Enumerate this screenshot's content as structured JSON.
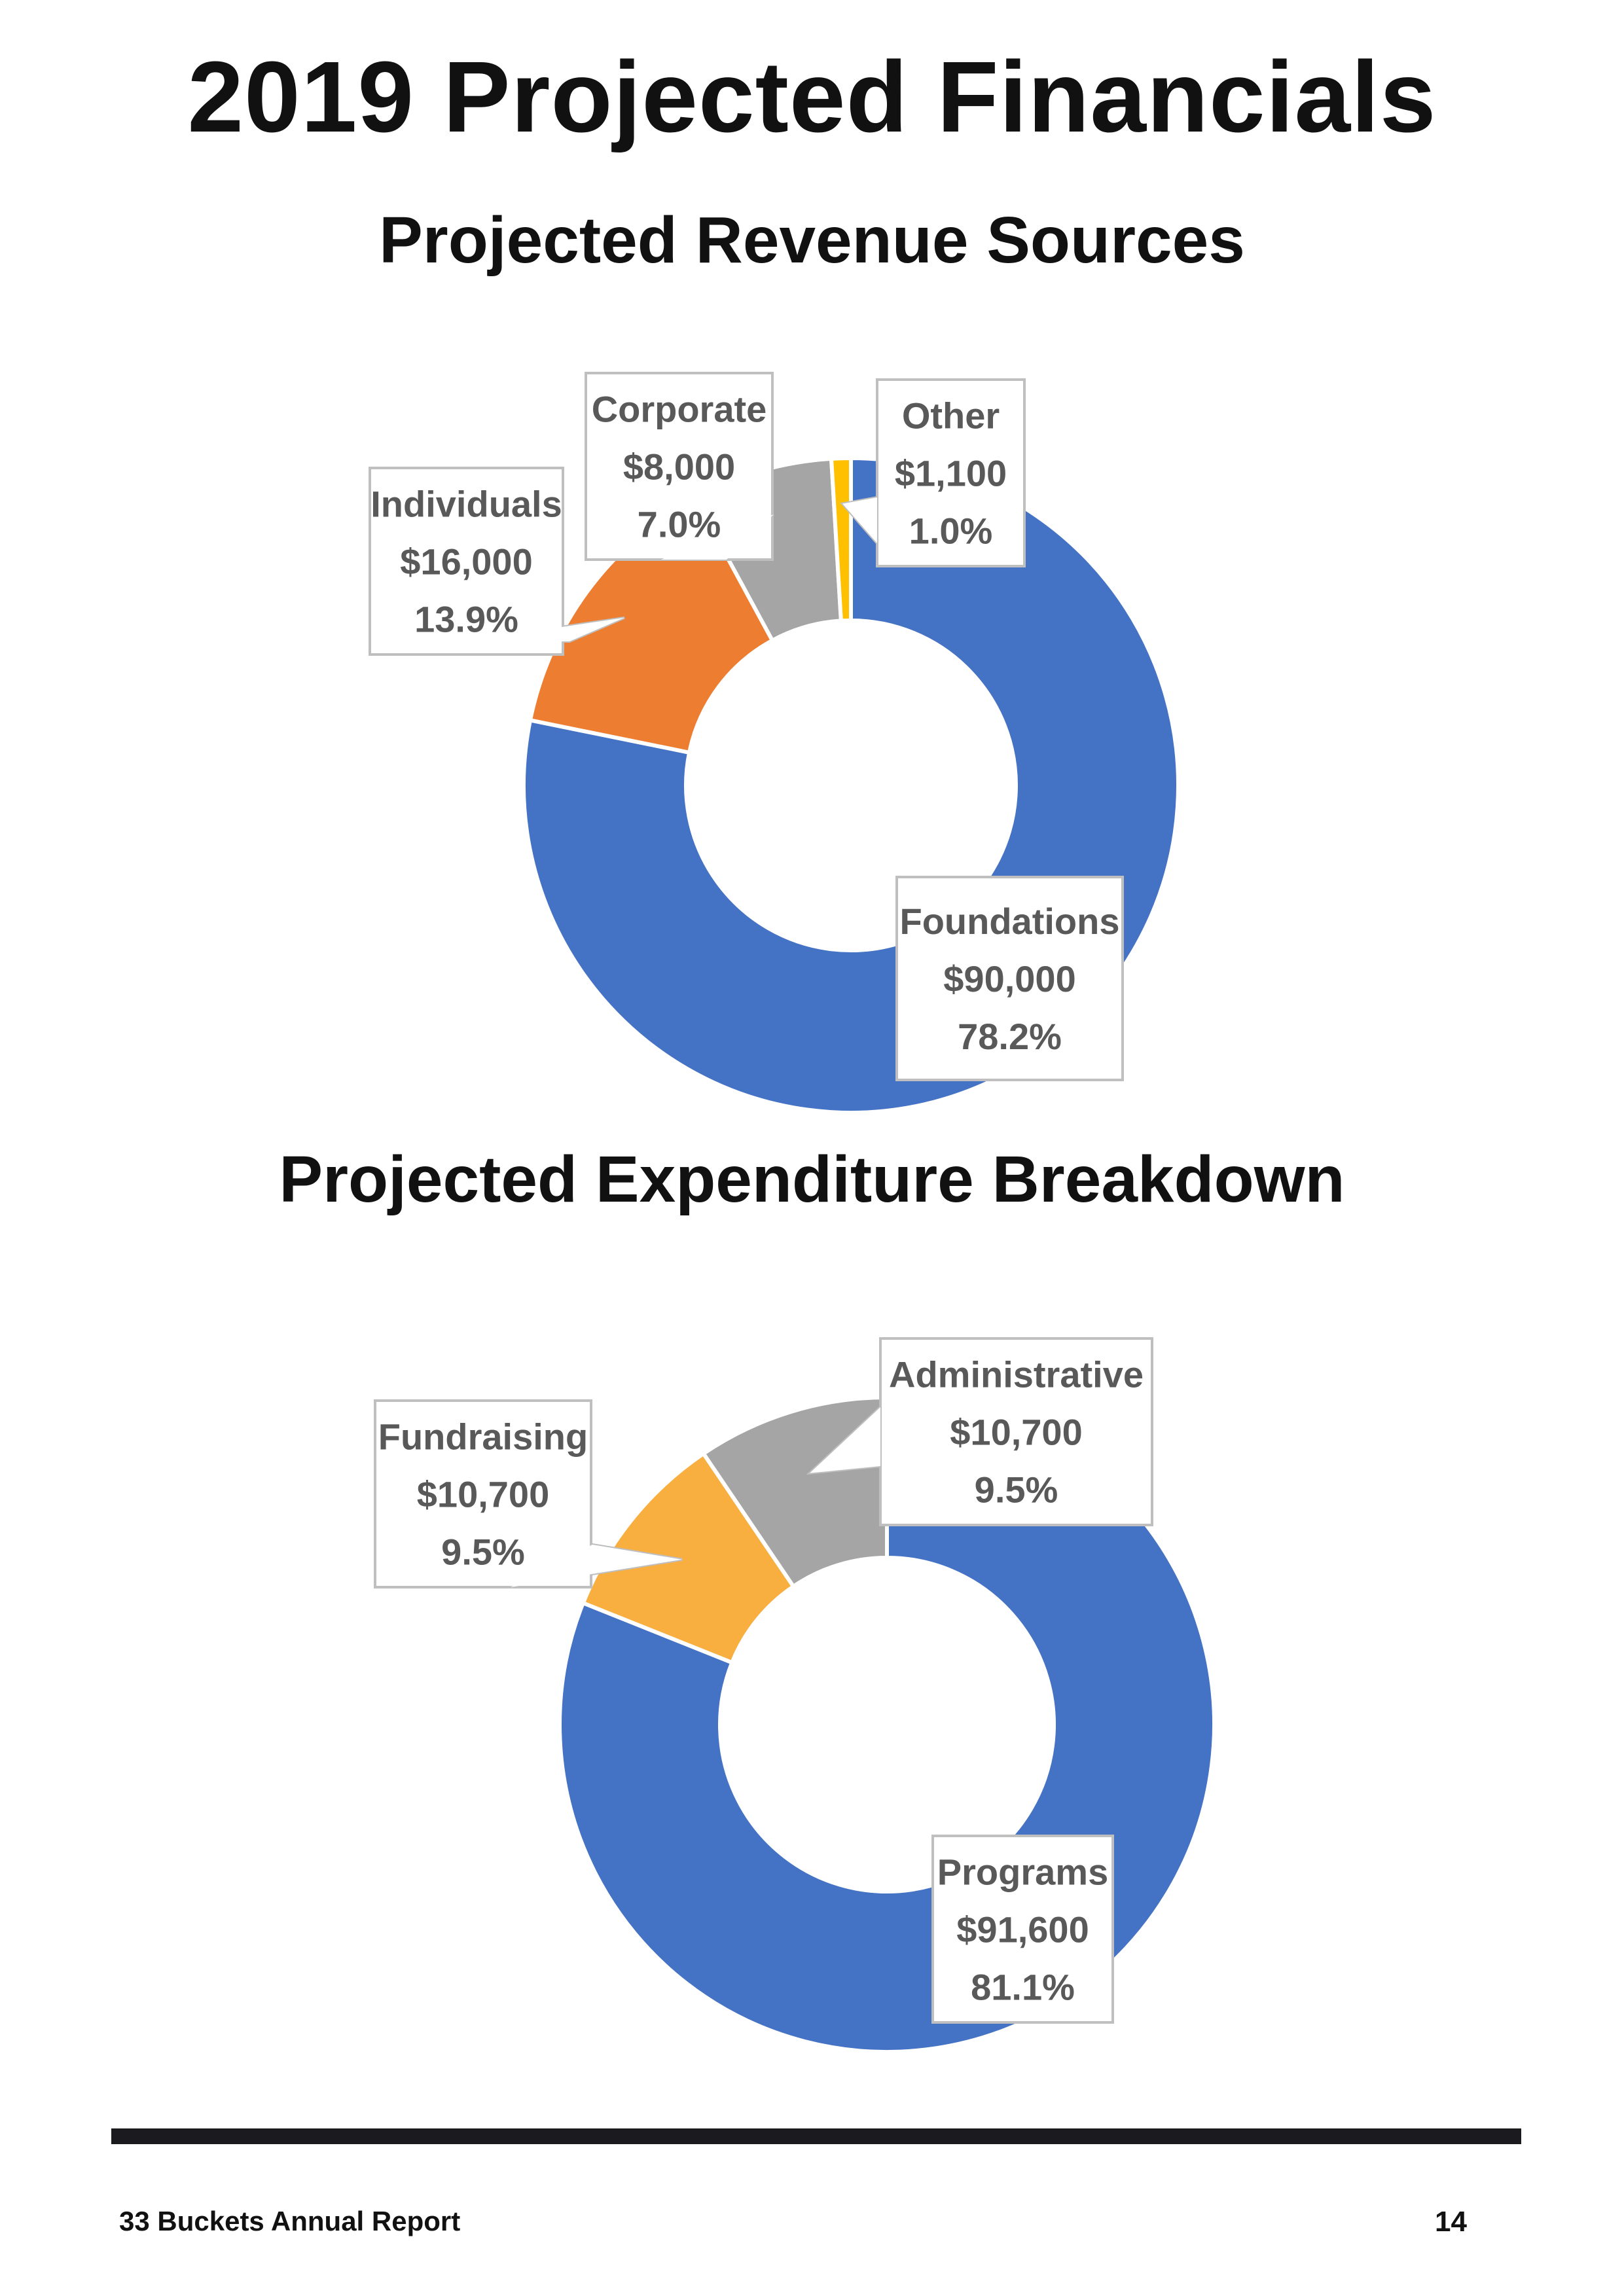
{
  "page": {
    "title": "2019 Projected Financials",
    "footer_left": "33 Buckets Annual Report",
    "page_number": "14"
  },
  "chart_data": [
    {
      "type": "pie",
      "style": "donut",
      "title": "Projected Revenue Sources",
      "categories": [
        "Foundations",
        "Individuals",
        "Corporate",
        "Other"
      ],
      "values": [
        90000,
        16000,
        8000,
        1100
      ],
      "value_labels": [
        "$90,000",
        "$16,000",
        "$8,000",
        "$1,100"
      ],
      "percent_labels": [
        "78.2%",
        "13.9%",
        "7.0%",
        "1.0%"
      ],
      "colors": [
        "#4472C4",
        "#ED7D31",
        "#A5A5A5",
        "#FFC000"
      ],
      "start": "12 o'clock",
      "direction": "clockwise"
    },
    {
      "type": "pie",
      "style": "donut",
      "title": "Projected Expenditure Breakdown",
      "categories": [
        "Programs",
        "Fundraising",
        "Administrative"
      ],
      "values": [
        91600,
        10700,
        10700
      ],
      "value_labels": [
        "$91,600",
        "$10,700",
        "$10,700"
      ],
      "percent_labels": [
        "81.1%",
        "9.5%",
        "9.5%"
      ],
      "colors": [
        "#4472C4",
        "#F9AE40",
        "#A5A5A5"
      ],
      "start": "12 o'clock",
      "direction": "clockwise"
    }
  ]
}
